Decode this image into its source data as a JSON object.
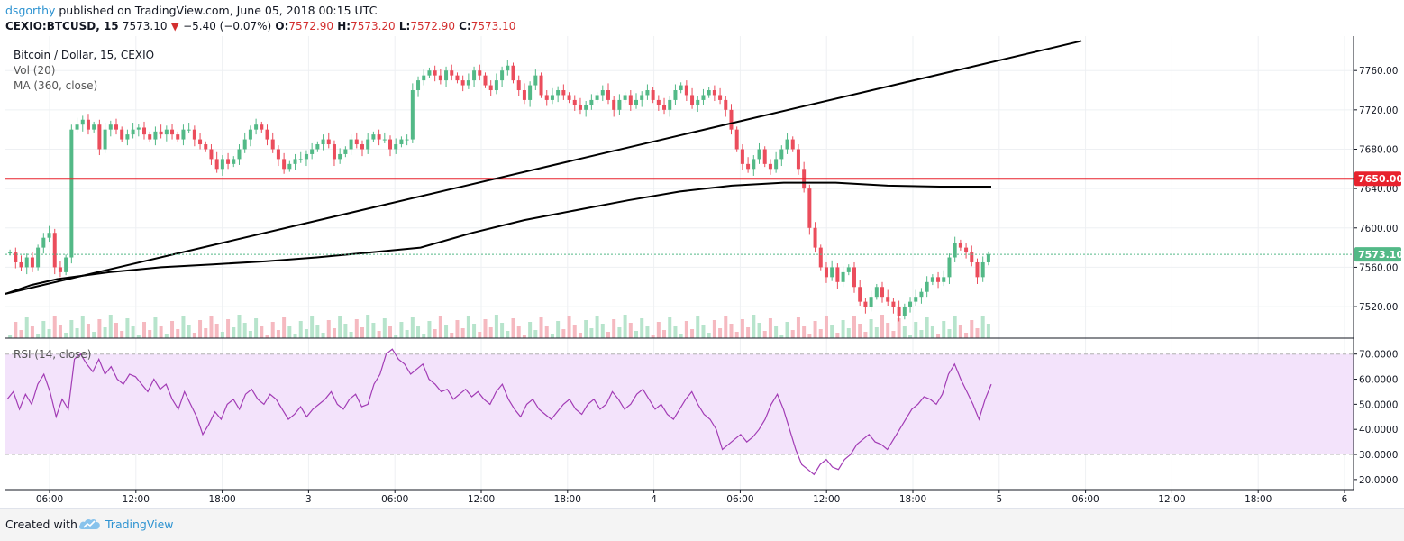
{
  "header": {
    "author": "dsgorthy",
    "published": "published on TradingView.com, June 05, 2018 00:15 UTC",
    "symbol": "CEXIO:BTCUSD, 15",
    "last": "7573.10",
    "down_arrow": "▼",
    "change": "−5.40 (−0.07%)",
    "o_label": "O:",
    "o_value": "7572.90",
    "h_label": "H:",
    "h_value": "7573.20",
    "l_label": "L:",
    "l_value": "7572.90",
    "c_label": "C:",
    "c_value": "7573.10"
  },
  "legend": {
    "title": "Bitcoin / Dollar, 15, CEXIO",
    "vol": "Vol (20)",
    "ma": "MA (360, close)",
    "rsi": "RSI (14, close)"
  },
  "footer": {
    "created_with": "Created with",
    "brand": "TradingView",
    "logo_icon": "tradingview-cloud-icon"
  },
  "colors": {
    "up": "#53b987",
    "down": "#eb4d5c",
    "level": "#e8222d",
    "rsi_line": "#a23cb5",
    "rsi_band": "#f3e3fb",
    "price_tag": "#53b987",
    "level_tag": "#e8222d"
  },
  "chart_data": {
    "type": "candlestick",
    "symbol": "CEXIO:BTCUSD",
    "interval": "15",
    "x_ticks": [
      "06:00",
      "12:00",
      "18:00",
      "3",
      "06:00",
      "12:00",
      "18:00",
      "4",
      "06:00",
      "12:00",
      "18:00",
      "5",
      "06:00",
      "12:00",
      "18:00",
      "6"
    ],
    "price_ticks": [
      "7760.00",
      "7720.00",
      "7680.00",
      "7640.00",
      "7600.00",
      "7560.00",
      "7520.00"
    ],
    "price_range": [
      7488,
      7795
    ],
    "horizontal_level": {
      "value": 7650,
      "label": "7650.00"
    },
    "last_price": {
      "value": 7573.1,
      "label": "7573.10"
    },
    "trendline": {
      "from": [
        "Jun 2 00:00",
        7533
      ],
      "to": [
        "Jun 5 00:15",
        7790
      ]
    },
    "ma_360": [
      [
        0,
        7533
      ],
      [
        12,
        7542
      ],
      [
        24,
        7548
      ],
      [
        48,
        7555
      ],
      [
        72,
        7560
      ],
      [
        96,
        7563
      ],
      [
        120,
        7566
      ],
      [
        144,
        7570
      ],
      [
        168,
        7575
      ],
      [
        192,
        7580
      ],
      [
        216,
        7595
      ],
      [
        240,
        7608
      ],
      [
        264,
        7618
      ],
      [
        288,
        7628
      ],
      [
        312,
        7637
      ],
      [
        336,
        7643
      ],
      [
        360,
        7646
      ],
      [
        384,
        7646
      ],
      [
        408,
        7643
      ],
      [
        432,
        7642
      ],
      [
        456,
        7642
      ]
    ],
    "candles_close": [
      7575,
      7565,
      7560,
      7570,
      7560,
      7580,
      7590,
      7595,
      7560,
      7555,
      7570,
      7700,
      7705,
      7710,
      7700,
      7705,
      7680,
      7700,
      7705,
      7700,
      7690,
      7695,
      7700,
      7702,
      7695,
      7690,
      7698,
      7695,
      7700,
      7695,
      7690,
      7700,
      7700,
      7690,
      7685,
      7680,
      7670,
      7660,
      7670,
      7665,
      7670,
      7680,
      7690,
      7700,
      7705,
      7700,
      7690,
      7680,
      7670,
      7660,
      7665,
      7670,
      7670,
      7675,
      7680,
      7685,
      7690,
      7685,
      7670,
      7675,
      7680,
      7690,
      7685,
      7680,
      7690,
      7695,
      7690,
      7690,
      7680,
      7685,
      7690,
      7690,
      7740,
      7750,
      7755,
      7760,
      7755,
      7750,
      7760,
      7755,
      7750,
      7745,
      7750,
      7760,
      7755,
      7745,
      7740,
      7750,
      7760,
      7765,
      7750,
      7740,
      7730,
      7745,
      7755,
      7735,
      7730,
      7735,
      7740,
      7735,
      7730,
      7725,
      7720,
      7725,
      7730,
      7735,
      7740,
      7730,
      7720,
      7730,
      7735,
      7725,
      7730,
      7735,
      7740,
      7730,
      7725,
      7720,
      7730,
      7740,
      7745,
      7735,
      7725,
      7730,
      7735,
      7740,
      7735,
      7730,
      7720,
      7700,
      7680,
      7665,
      7660,
      7670,
      7680,
      7665,
      7660,
      7670,
      7680,
      7690,
      7680,
      7660,
      7640,
      7600,
      7580,
      7560,
      7550,
      7560,
      7545,
      7555,
      7560,
      7540,
      7525,
      7520,
      7530,
      7540,
      7530,
      7525,
      7520,
      7510,
      7520,
      7525,
      7530,
      7535,
      7545,
      7550,
      7545,
      7550,
      7570,
      7585,
      7580,
      7575,
      7565,
      7550,
      7565,
      7573.1
    ],
    "rsi": {
      "range": [
        16,
        76
      ],
      "ticks": [
        "70.0000",
        "60.0000",
        "50.0000",
        "40.0000",
        "30.0000",
        "20.0000"
      ],
      "band": [
        30,
        70
      ],
      "values": [
        52,
        55,
        48,
        54,
        50,
        58,
        62,
        55,
        45,
        52,
        48,
        68,
        70,
        66,
        63,
        68,
        62,
        65,
        60,
        58,
        62,
        61,
        58,
        55,
        60,
        56,
        58,
        52,
        48,
        55,
        50,
        45,
        38,
        42,
        47,
        44,
        50,
        52,
        48,
        54,
        56,
        52,
        50,
        54,
        52,
        48,
        44,
        46,
        49,
        45,
        48,
        50,
        52,
        55,
        50,
        48,
        52,
        54,
        49,
        50,
        58,
        62,
        70,
        72,
        68,
        66,
        62,
        64,
        66,
        60,
        58,
        55,
        56,
        52,
        54,
        56,
        53,
        55,
        52,
        50,
        55,
        58,
        52,
        48,
        45,
        50,
        52,
        48,
        46,
        44,
        47,
        50,
        52,
        48,
        46,
        50,
        52,
        48,
        50,
        55,
        52,
        48,
        50,
        54,
        56,
        52,
        48,
        50,
        46,
        44,
        48,
        52,
        55,
        50,
        46,
        44,
        40,
        32,
        34,
        36,
        38,
        35,
        37,
        40,
        44,
        50,
        54,
        48,
        40,
        32,
        26,
        24,
        22,
        26,
        28,
        25,
        24,
        28,
        30,
        34,
        36,
        38,
        35,
        34,
        32,
        36,
        40,
        44,
        48,
        50,
        53,
        52,
        50,
        54,
        62,
        66,
        60,
        55,
        50,
        44,
        52,
        58
      ]
    }
  }
}
